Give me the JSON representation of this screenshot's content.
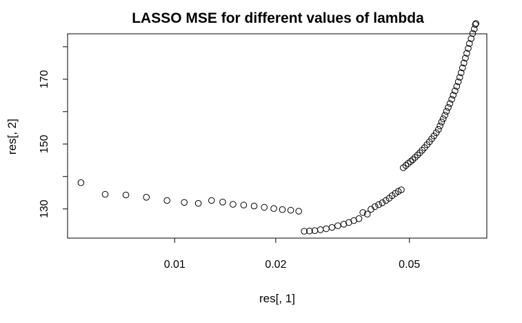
{
  "chart_data": {
    "type": "scatter",
    "title": "LASSO MSE for different values of lambda",
    "xlabel": "res[, 1]",
    "ylabel": "res[, 2]",
    "x_scale": "log",
    "xlim": [
      0.0048,
      0.085
    ],
    "ylim": [
      121,
      184
    ],
    "x_ticks": [
      0.01,
      0.02,
      0.05
    ],
    "x_tick_labels": [
      "0.01",
      "0.02",
      "0.05"
    ],
    "y_ticks": [
      130,
      140,
      150,
      160,
      170,
      180
    ],
    "y_tick_labels": [
      "130",
      "",
      "150",
      "",
      "170",
      ""
    ],
    "grid": false,
    "marker": "open-circle",
    "points": [
      [
        0.00526,
        138.1
      ],
      [
        0.00621,
        134.5
      ],
      [
        0.00716,
        134.3
      ],
      [
        0.00824,
        133.6
      ],
      [
        0.00949,
        132.6
      ],
      [
        0.01068,
        132.0
      ],
      [
        0.01176,
        131.7
      ],
      [
        0.01288,
        132.6
      ],
      [
        0.0139,
        132.1
      ],
      [
        0.01492,
        131.4
      ],
      [
        0.01605,
        131.2
      ],
      [
        0.01724,
        130.9
      ],
      [
        0.01848,
        130.5
      ],
      [
        0.01973,
        130.1
      ],
      [
        0.02093,
        129.8
      ],
      [
        0.02216,
        129.6
      ],
      [
        0.02341,
        129.3
      ],
      [
        0.02431,
        123.1
      ],
      [
        0.02521,
        123.2
      ],
      [
        0.02613,
        123.3
      ],
      [
        0.02717,
        123.6
      ],
      [
        0.02825,
        123.9
      ],
      [
        0.0294,
        124.3
      ],
      [
        0.0306,
        124.8
      ],
      [
        0.03187,
        125.3
      ],
      [
        0.03299,
        125.8
      ],
      [
        0.03415,
        126.4
      ],
      [
        0.03536,
        127.0
      ],
      [
        0.03634,
        128.9
      ],
      [
        0.03746,
        128.4
      ],
      [
        0.03841,
        129.9
      ],
      [
        0.03947,
        130.7
      ],
      [
        0.04049,
        131.3
      ],
      [
        0.04152,
        131.9
      ],
      [
        0.04256,
        132.6
      ],
      [
        0.04352,
        133.3
      ],
      [
        0.0444,
        134.1
      ],
      [
        0.0454,
        134.8
      ],
      [
        0.04632,
        135.4
      ],
      [
        0.0473,
        135.9
      ],
      [
        0.04794,
        142.7
      ],
      [
        0.04878,
        143.4
      ],
      [
        0.04954,
        144.0
      ],
      [
        0.05036,
        144.6
      ],
      [
        0.05117,
        145.2
      ],
      [
        0.05199,
        145.9
      ],
      [
        0.05285,
        146.6
      ],
      [
        0.05371,
        147.3
      ],
      [
        0.05457,
        148.1
      ],
      [
        0.05548,
        148.9
      ],
      [
        0.0564,
        149.8
      ],
      [
        0.05733,
        150.7
      ],
      [
        0.05823,
        151.6
      ],
      [
        0.05914,
        152.5
      ],
      [
        0.06007,
        153.5
      ],
      [
        0.06101,
        154.5
      ],
      [
        0.06167,
        155.6
      ],
      [
        0.06234,
        156.8
      ],
      [
        0.06301,
        157.8
      ],
      [
        0.06377,
        158.9
      ],
      [
        0.06445,
        160.1
      ],
      [
        0.06523,
        161.3
      ],
      [
        0.06601,
        162.5
      ],
      [
        0.06681,
        163.8
      ],
      [
        0.06752,
        165.1
      ],
      [
        0.06834,
        166.4
      ],
      [
        0.06915,
        167.8
      ],
      [
        0.06989,
        169.2
      ],
      [
        0.07062,
        170.6
      ],
      [
        0.07126,
        172.0
      ],
      [
        0.07196,
        173.5
      ],
      [
        0.07267,
        175.0
      ],
      [
        0.07337,
        176.5
      ],
      [
        0.07409,
        178.0
      ],
      [
        0.07482,
        179.5
      ],
      [
        0.07546,
        181.0
      ],
      [
        0.0763,
        182.5
      ],
      [
        0.07715,
        184.1
      ],
      [
        0.078,
        185.5
      ],
      [
        0.0786,
        186.9
      ],
      [
        0.07889,
        187.2
      ]
    ]
  }
}
